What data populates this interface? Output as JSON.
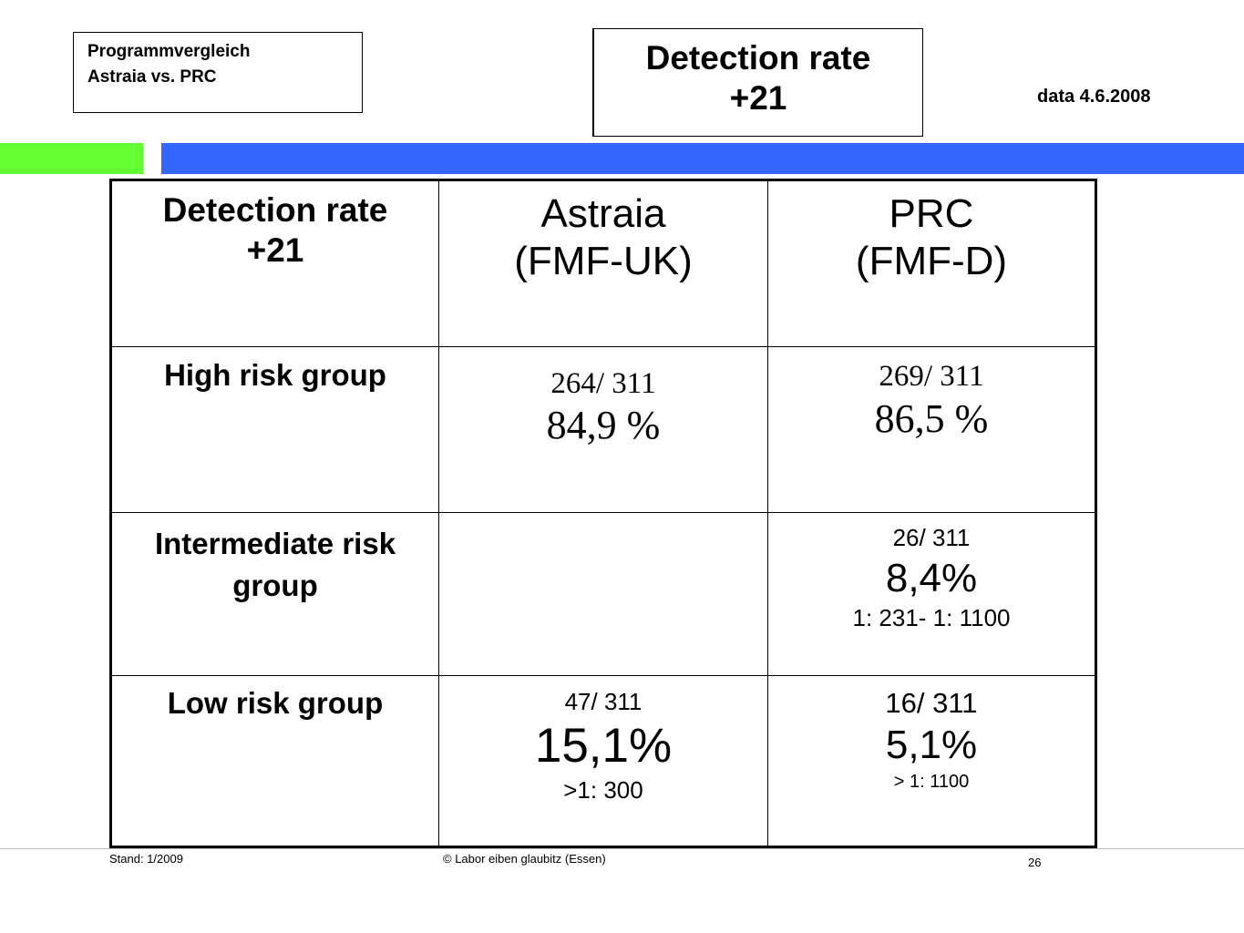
{
  "header": {
    "program_line1": "Programmvergleich",
    "program_line2": "Astraia vs. PRC",
    "title_line1": "Detection rate",
    "title_line2": "+21",
    "data_date": "data 4.6.2008"
  },
  "colors": {
    "green_bar": "#66ff33",
    "blue_bar": "#3366ff"
  },
  "table": {
    "header": {
      "col1_line1": "Detection rate",
      "col1_line2": "+21",
      "col2_line1": "Astraia",
      "col2_line2": "(FMF-UK)",
      "col3_line1": "PRC",
      "col3_line2": "(FMF-D)"
    },
    "rows": [
      {
        "label": "High risk group",
        "astraia_count": "264/ 311",
        "astraia_pct": "84,9 %",
        "prc_count": "269/ 311",
        "prc_pct": "86,5 %"
      },
      {
        "label_line1": "Intermediate risk",
        "label_line2": "group",
        "prc_count": "26/ 311",
        "prc_pct": "8,4%",
        "prc_range": "1: 231- 1: 1100"
      },
      {
        "label": "Low risk group",
        "astraia_count": "47/ 311",
        "astraia_pct": "15,1%",
        "astraia_range": ">1: 300",
        "prc_count": "16/ 311",
        "prc_pct": "5,1%",
        "prc_range": "> 1: 1100"
      }
    ]
  },
  "footer": {
    "stand": "Stand: 1/2009",
    "copyright": "© Labor eiben glaubitz (Essen)",
    "page_number": "26"
  }
}
